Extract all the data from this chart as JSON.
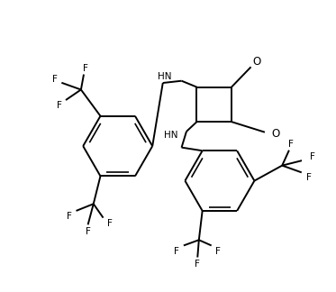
{
  "background": "#ffffff",
  "line_color": "#000000",
  "line_width": 1.4,
  "font_size": 7.5,
  "figsize": [
    3.73,
    3.24
  ],
  "dpi": 100,
  "xlim": [
    0,
    373
  ],
  "ylim": [
    0,
    324
  ]
}
